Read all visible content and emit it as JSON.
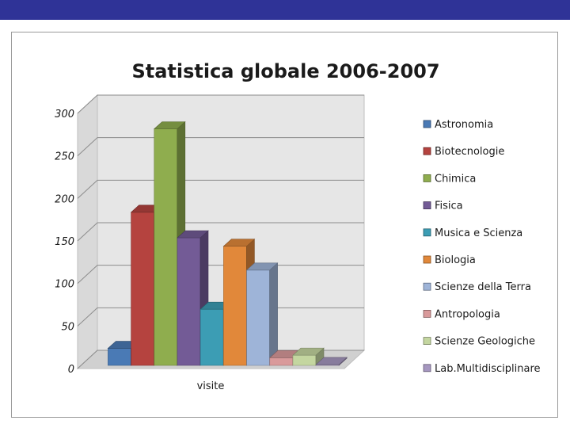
{
  "chart_data": {
    "type": "bar",
    "title": "Statistica globale 2006-2007",
    "categories": [
      "visite"
    ],
    "xlabel": "",
    "ylabel": "",
    "ylim": [
      0,
      300
    ],
    "yticks": [
      "0",
      "50",
      "100",
      "150",
      "200",
      "250",
      "300"
    ],
    "grid": true,
    "legend_position": "right",
    "style": "3d-clustered-column",
    "series": [
      {
        "name": "Astronomia",
        "values": [
          20
        ],
        "color": "#4a7ab5"
      },
      {
        "name": "Biotecnologie",
        "values": [
          180
        ],
        "color": "#b5433f"
      },
      {
        "name": "Chimica",
        "values": [
          278
        ],
        "color": "#8fad4e"
      },
      {
        "name": "Fisica",
        "values": [
          150
        ],
        "color": "#735b96"
      },
      {
        "name": "Musica e Scienza",
        "values": [
          66
        ],
        "color": "#3c9db4"
      },
      {
        "name": "Biologia",
        "values": [
          140
        ],
        "color": "#e1883a"
      },
      {
        "name": "Scienze della Terra",
        "values": [
          112
        ],
        "color": "#9eb4d8"
      },
      {
        "name": "Antropologia",
        "values": [
          9
        ],
        "color": "#d99a9b"
      },
      {
        "name": "Scienze Geologiche",
        "values": [
          12
        ],
        "color": "#c4d6a0"
      },
      {
        "name": "Lab.Multidisciplinare",
        "values": [
          1
        ],
        "color": "#a697c0"
      }
    ]
  }
}
